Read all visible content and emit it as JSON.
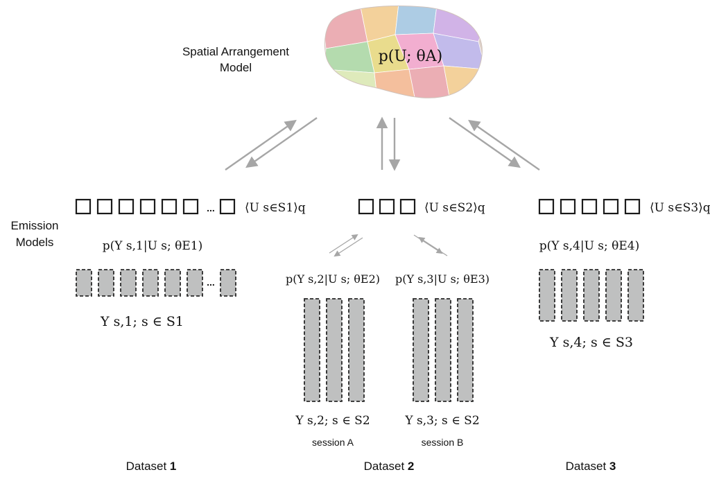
{
  "spatial_model": {
    "label_line1": "Spatial Arrangement",
    "label_line2": "Model",
    "formula": "p(U; θA)"
  },
  "emission_label": {
    "line1": "Emission",
    "line2": "Models"
  },
  "expectations": {
    "d1": "⟨U s∈S1⟩q",
    "d2": "⟨U s∈S2⟩q",
    "d3": "⟨U s∈S3⟩q"
  },
  "emission_formulas": {
    "e1": "p(Y s,1|U s; θE1)",
    "e2": "p(Y s,2|U s; θE2)",
    "e3": "p(Y s,3|U s; θE3)",
    "e4": "p(Y s,4|U s; θE4)"
  },
  "data_labels": {
    "y1": "Y s,1; s ∈ S1",
    "y2": "Y s,2; s ∈ S2",
    "y3": "Y s,3; s ∈ S2",
    "y4": "Y s,4; s ∈ S3"
  },
  "ellipsis": "...",
  "sessions": {
    "a": "session A",
    "b": "session B"
  },
  "datasets": [
    {
      "prefix": "Dataset ",
      "number": "1"
    },
    {
      "prefix": "Dataset ",
      "number": "2"
    },
    {
      "prefix": "Dataset ",
      "number": "3"
    }
  ],
  "colors": {
    "arrow": "#a6a6a6",
    "data_fill": "#bfc0c0",
    "box_stroke": "#1a1a1a"
  },
  "brain_parcel_colors": [
    "#e8a0a8",
    "#f2c98a",
    "#9fc4e0",
    "#c9a6e3",
    "#a8d5a0",
    "#e6d77a",
    "#f0a0c8",
    "#b8b0e8",
    "#d9e7b0",
    "#f3b58d"
  ]
}
